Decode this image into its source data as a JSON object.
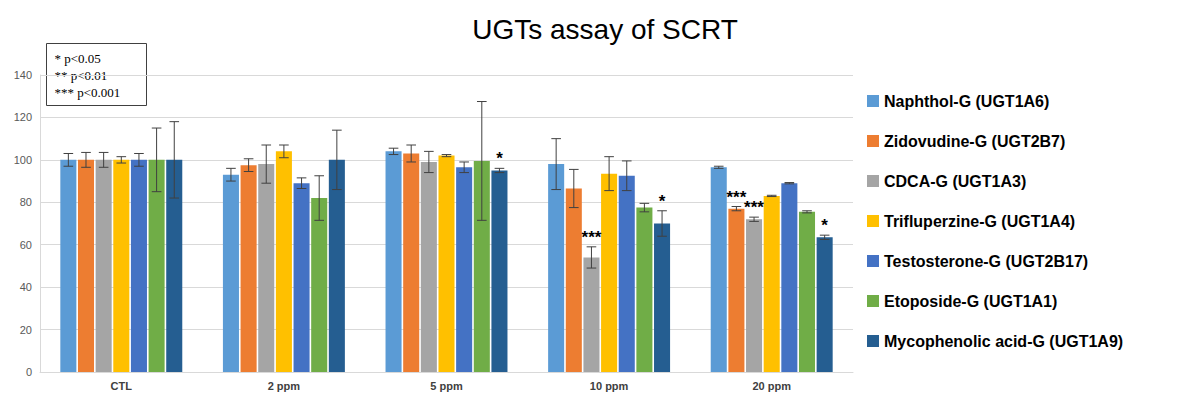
{
  "chart_data": {
    "type": "bar",
    "title": "UGTs assay of SCRT",
    "annotations": [
      "* p<0.05",
      "** p<0.01",
      "*** p<0.001"
    ],
    "categories": [
      "CTL",
      "2 ppm",
      "5 ppm",
      "10 ppm",
      "20 ppm"
    ],
    "ylim": [
      0,
      140
    ],
    "yticks": [
      0,
      20,
      40,
      60,
      80,
      100,
      120,
      140
    ],
    "grid": true,
    "legend": "right",
    "series": [
      {
        "name": "Naphthol-G (UGT1A6)",
        "color": "#5B9BD5",
        "values": [
          100,
          93,
          104,
          98,
          96.5
        ],
        "errors": [
          3,
          3,
          1.5,
          12,
          0.5
        ],
        "significance": [
          null,
          null,
          null,
          null,
          null
        ]
      },
      {
        "name": "Zidovudine-G (UGT2B7)",
        "color": "#ED7D31",
        "values": [
          100,
          97.5,
          103,
          86.5,
          77
        ],
        "errors": [
          3.5,
          3,
          4,
          9,
          1
        ],
        "significance": [
          null,
          null,
          null,
          null,
          "***"
        ]
      },
      {
        "name": "CDCA-G (UGT1A3)",
        "color": "#A5A5A5",
        "values": [
          100,
          98,
          99,
          54,
          72
        ],
        "errors": [
          3.5,
          9,
          5,
          5,
          1
        ],
        "significance": [
          null,
          null,
          null,
          "***",
          "***"
        ]
      },
      {
        "name": "Trifluperzine-G (UGT1A4)",
        "color": "#FFC000",
        "values": [
          100,
          104,
          102,
          93.5,
          83
        ],
        "errors": [
          1.5,
          3,
          0.5,
          8,
          0.3
        ],
        "significance": [
          null,
          null,
          null,
          null,
          null
        ]
      },
      {
        "name": "Testosterone-G (UGT2B17)",
        "color": "#4472C4",
        "values": [
          100,
          89,
          96.5,
          92.5,
          89
        ],
        "errors": [
          3,
          2.5,
          2.5,
          7,
          0.3
        ],
        "significance": [
          null,
          null,
          null,
          null,
          null
        ]
      },
      {
        "name": "Etoposide-G (UGT1A1)",
        "color": "#70AD47",
        "values": [
          100,
          82,
          99.5,
          77.5,
          75.5
        ],
        "errors": [
          15,
          10.5,
          28,
          2,
          0.5
        ],
        "significance": [
          null,
          null,
          null,
          null,
          null
        ]
      },
      {
        "name": "Mycophenolic acid-G (UGT1A9)",
        "color": "#255E91",
        "values": [
          100,
          100,
          95,
          70,
          63.5
        ],
        "errors": [
          18,
          14,
          1,
          6,
          1
        ],
        "significance": [
          null,
          null,
          "*",
          "*",
          "*"
        ]
      }
    ]
  }
}
